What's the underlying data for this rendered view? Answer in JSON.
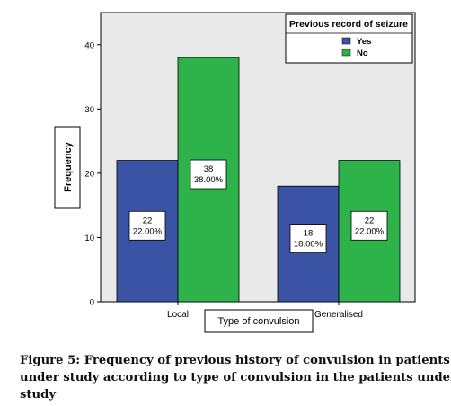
{
  "chart_data": {
    "type": "bar",
    "categories": [
      "Local",
      "Generalised"
    ],
    "series": [
      {
        "name": "Yes",
        "values": [
          22,
          18
        ],
        "labels": [
          "22",
          "18"
        ],
        "percent_labels": [
          "22.00%",
          "18.00%"
        ],
        "color": "#3a53a4"
      },
      {
        "name": "No",
        "values": [
          38,
          22
        ],
        "labels": [
          "38",
          "22"
        ],
        "percent_labels": [
          "38.00%",
          "22.00%"
        ],
        "color": "#2db34a"
      }
    ],
    "xlabel": "Type of convulsion",
    "ylabel": "Frequency",
    "ylim": [
      0,
      45
    ],
    "yticks": [
      "0",
      "10",
      "20",
      "30",
      "40"
    ],
    "ytick_values": [
      0,
      10,
      20,
      30,
      40
    ],
    "legend_title": "Previous record of seizure",
    "legend_position": "top-right",
    "grid": false,
    "plot_background": "#e9e9e9"
  },
  "caption": {
    "line1": "Figure 5: Frequency of previous history of convulsion in patients",
    "line2": "under study according to type of convulsion in the patients under",
    "line3": "study"
  }
}
